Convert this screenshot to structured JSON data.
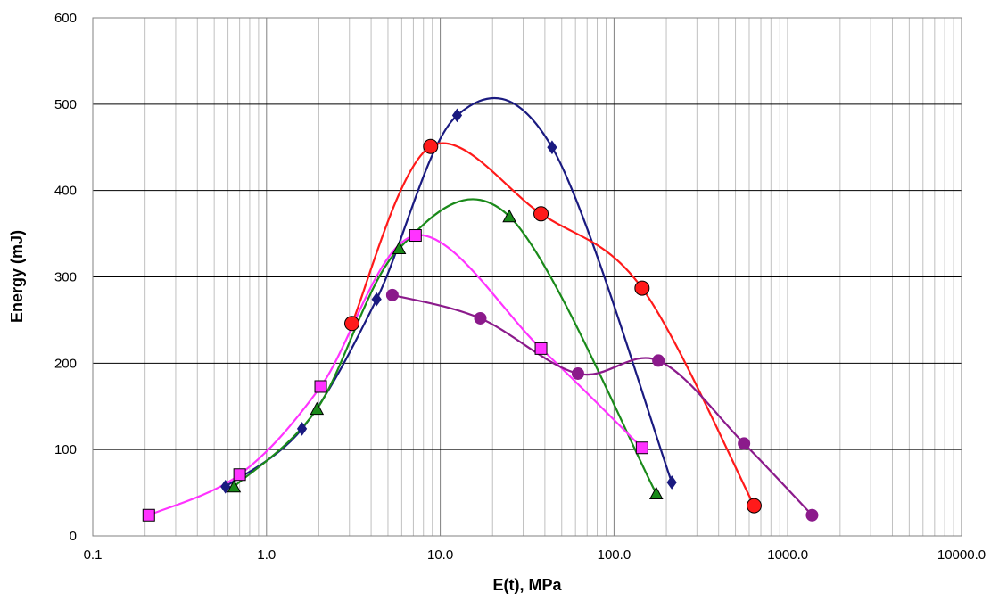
{
  "chart_data": {
    "type": "scatter",
    "title": "",
    "xlabel": "E(t), MPa",
    "ylabel": "Energy (mJ)",
    "x_scale": "log",
    "xlim": [
      0.1,
      10000
    ],
    "ylim": [
      0,
      600
    ],
    "grid": true,
    "legend": "none",
    "x_tick_labels": [
      "0.1",
      "1.0",
      "10.0",
      "100.0",
      "1000.0",
      "10000.0"
    ],
    "y_tick_labels": [
      "0",
      "100",
      "200",
      "300",
      "400",
      "500",
      "600"
    ],
    "series": [
      {
        "color": "#1a1a80",
        "marker": "diamond",
        "x": [
          0.58,
          1.6,
          4.3,
          12.5,
          44,
          215
        ],
        "y": [
          57,
          124,
          274,
          487,
          450,
          62
        ]
      },
      {
        "color": "#ff1a1a",
        "marker": "circle",
        "x": [
          3.1,
          8.8,
          38,
          145,
          640
        ],
        "y": [
          246,
          451,
          373,
          287,
          35
        ]
      },
      {
        "color": "#1a8a1a",
        "marker": "triangle",
        "x": [
          0.65,
          1.95,
          5.8,
          25,
          175
        ],
        "y": [
          57,
          147,
          333,
          370,
          49
        ]
      },
      {
        "color": "#ff33ff",
        "marker": "square",
        "x": [
          0.21,
          0.7,
          2.05,
          7.2,
          38,
          145
        ],
        "y": [
          24,
          71,
          173,
          348,
          217,
          102
        ]
      },
      {
        "color": "#8b1a8b",
        "marker": "circle-small",
        "x": [
          5.3,
          17,
          62,
          180,
          560,
          1380
        ],
        "y": [
          279,
          252,
          188,
          203,
          107,
          24
        ]
      }
    ]
  }
}
